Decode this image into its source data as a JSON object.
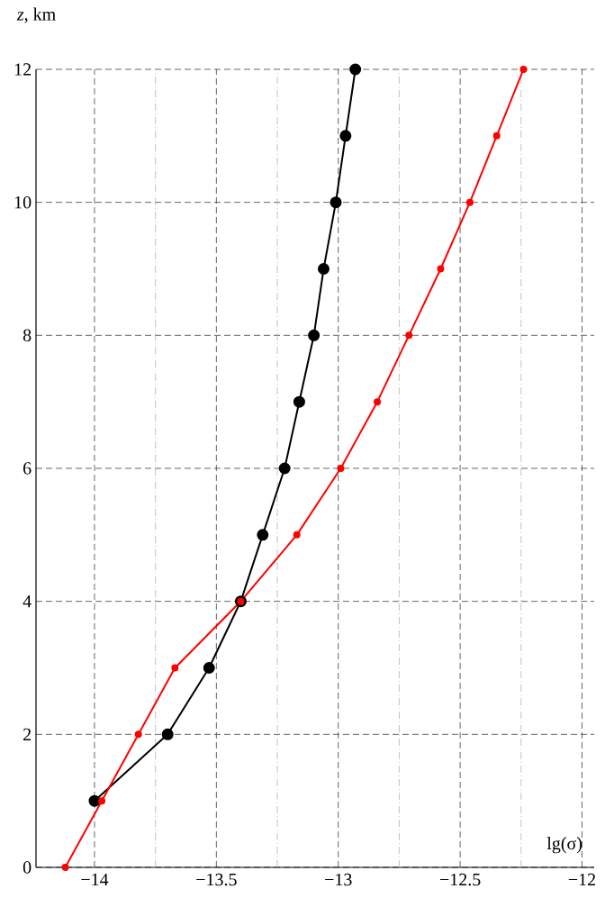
{
  "chart_data": {
    "type": "line",
    "xlabel": "lg(σ)",
    "ylabel": "*z*, km",
    "series": [
      {
        "color": "#000000",
        "x": [
          -14.0,
          -13.7,
          -13.53,
          -13.4,
          -13.31,
          -13.22,
          -13.16,
          -13.1,
          -13.06,
          -13.01,
          -12.97,
          -12.93
        ],
        "values": [
          1,
          2,
          3,
          4,
          5,
          6,
          7,
          8,
          9,
          10,
          11,
          12
        ]
      },
      {
        "color": "#ff0000",
        "x": [
          -14.12,
          -13.97,
          -13.82,
          -13.67,
          -13.4,
          -13.17,
          -12.99,
          -12.84,
          -12.71,
          -12.58,
          -12.46,
          -12.35,
          -12.24
        ],
        "values": [
          0,
          1,
          2,
          3,
          4,
          5,
          6,
          7,
          8,
          9,
          10,
          11,
          12
        ]
      }
    ],
    "xlim": [
      -14.24,
      -11.95
    ],
    "ylim": [
      0,
      12
    ],
    "xticks": [
      {
        "value": -14,
        "label": "−14"
      },
      {
        "value": -13.75,
        "label": null
      },
      {
        "value": -13.5,
        "label": "−13.5"
      },
      {
        "value": -13.25,
        "label": null
      },
      {
        "value": -13,
        "label": "−13"
      },
      {
        "value": -12.75,
        "label": null
      },
      {
        "value": -12.5,
        "label": "−12.5"
      },
      {
        "value": -12.25,
        "label": null
      },
      {
        "value": -12,
        "label": "−12"
      }
    ],
    "yticks": [
      0,
      2,
      4,
      6,
      8,
      10,
      12
    ],
    "grid": true,
    "marker": "circle",
    "line_style": "solid"
  }
}
